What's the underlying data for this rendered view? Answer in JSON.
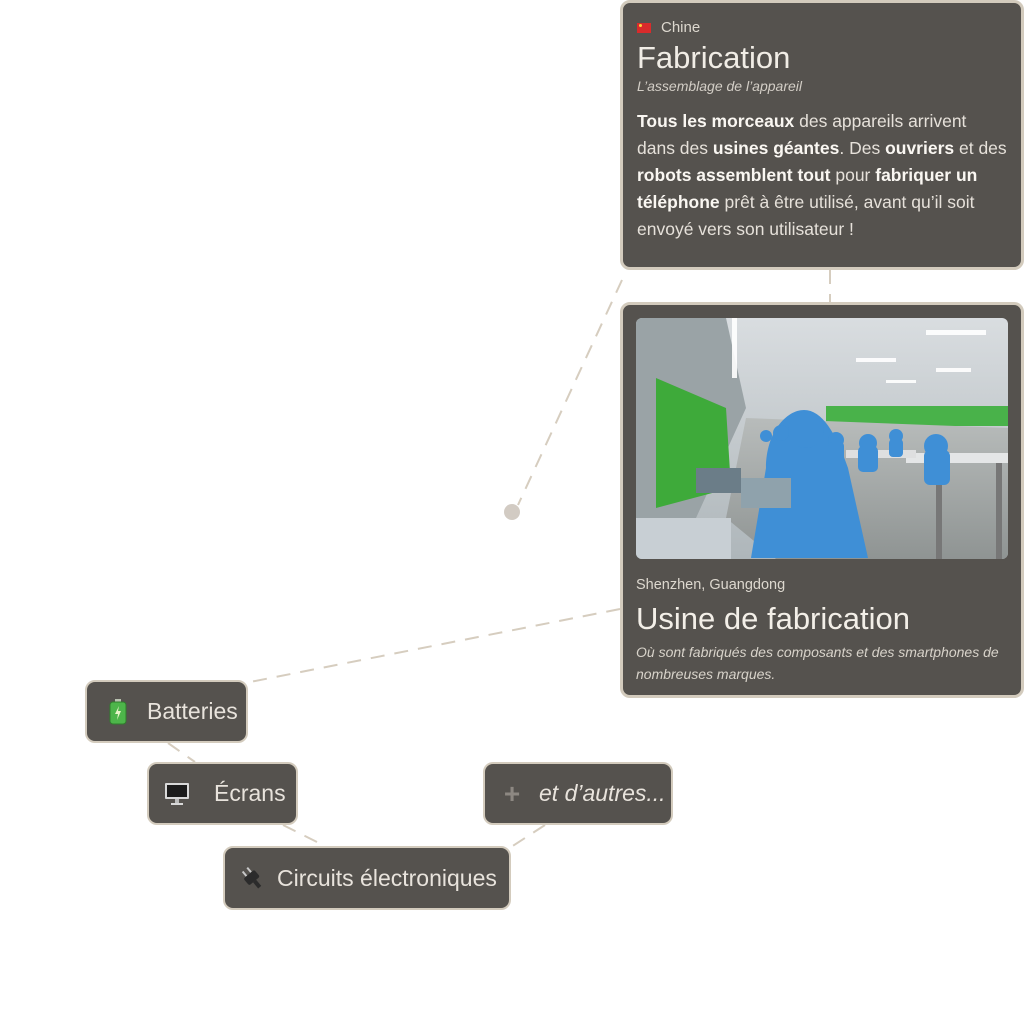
{
  "fabrication": {
    "country": "Chine",
    "title": "Fabrication",
    "subtitle": "L’assemblage de l’appareil",
    "body": [
      {
        "t": "Tous les morceaux",
        "b": true
      },
      {
        "t": " des appareils arrivent dans des ",
        "b": false
      },
      {
        "t": "usines géantes",
        "b": true
      },
      {
        "t": ". Des ",
        "b": false
      },
      {
        "t": "ouvriers",
        "b": true
      },
      {
        "t": " et des ",
        "b": false
      },
      {
        "t": "robots assemblent tout",
        "b": true
      },
      {
        "t": " pour ",
        "b": false
      },
      {
        "t": "fabriquer un téléphone",
        "b": true
      },
      {
        "t": " prêt à être utilisé, avant qu’il soit envoyé vers son utilisateur !",
        "b": false
      }
    ]
  },
  "factory": {
    "location": "Shenzhen, Guangdong",
    "title": "Usine de fabrication",
    "description": "Où sont fabriqués des composants et des smartphones de nombreuses marques."
  },
  "nodes": {
    "batteries": {
      "label": "Batteries",
      "icon": "battery-icon"
    },
    "ecrans": {
      "label": "Écrans",
      "icon": "monitor-icon"
    },
    "circuits": {
      "label": "Circuits électroniques",
      "icon": "plug-icon"
    },
    "autres": {
      "label": "et d’autres...",
      "icon": "plus-icon"
    }
  },
  "colors": {
    "card_bg": "#55524e",
    "card_border": "#d3cbbd",
    "connector": "#d6cdbf",
    "dot": "#d2cbc3"
  }
}
